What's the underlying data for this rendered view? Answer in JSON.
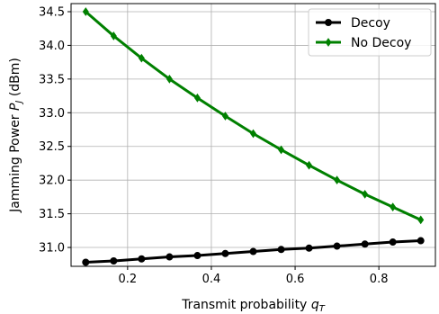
{
  "chart_data": {
    "type": "line",
    "xlabel": "Transmit probability",
    "xlabel_symbol": "q",
    "xlabel_subscript": "T",
    "ylabel": "Jamming Power",
    "ylabel_symbol": "P",
    "ylabel_subscript": "J",
    "ylabel_unit": "(dBm)",
    "xlim": [
      0.065,
      0.935
    ],
    "ylim": [
      30.72,
      34.62
    ],
    "x_ticks": [
      0.2,
      0.4,
      0.6,
      0.8
    ],
    "x_tick_labels": [
      "0.2",
      "0.4",
      "0.6",
      "0.8"
    ],
    "y_ticks": [
      31.0,
      31.5,
      32.0,
      32.5,
      33.0,
      33.5,
      34.0,
      34.5
    ],
    "y_tick_labels": [
      "31.0",
      "31.5",
      "32.0",
      "32.5",
      "33.0",
      "33.5",
      "34.0",
      "34.5"
    ],
    "grid": true,
    "legend_position": "top-right",
    "x": [
      0.1,
      0.1667,
      0.2333,
      0.3,
      0.3667,
      0.4333,
      0.5,
      0.5667,
      0.6333,
      0.7,
      0.7667,
      0.8333,
      0.9
    ],
    "series": [
      {
        "name": "Decoy",
        "color": "#000000",
        "marker": "circle",
        "values": [
          30.78,
          30.8,
          30.83,
          30.86,
          30.88,
          30.91,
          30.94,
          30.97,
          30.99,
          31.02,
          31.05,
          31.08,
          31.1
        ]
      },
      {
        "name": "No Decoy",
        "color": "#008000",
        "marker": "diamond",
        "values": [
          34.5,
          34.14,
          33.81,
          33.5,
          33.22,
          32.95,
          32.69,
          32.45,
          32.22,
          32.0,
          31.79,
          31.6,
          31.41
        ]
      }
    ]
  }
}
